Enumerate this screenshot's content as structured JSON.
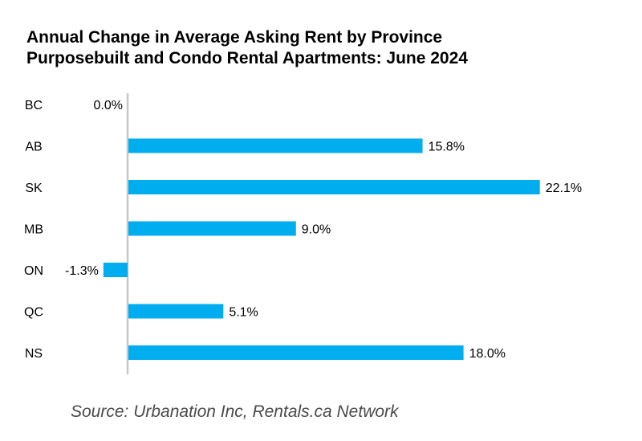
{
  "title_line1": "Annual Change in Average Asking Rent by Province",
  "title_line2": "Purposebuilt and Condo Rental Apartments: June 2024",
  "source": "Source: Urbanation Inc, Rentals.ca Network",
  "bar_color": "#00AEEF",
  "axis_color": "#c8c8c8",
  "chart_data": {
    "type": "bar",
    "orientation": "horizontal",
    "categories": [
      "BC",
      "AB",
      "SK",
      "MB",
      "ON",
      "QC",
      "NS"
    ],
    "values": [
      0.0,
      15.8,
      22.1,
      9.0,
      -1.3,
      5.1,
      18.0
    ],
    "value_labels": [
      "0.0%",
      "15.8%",
      "22.1%",
      "9.0%",
      "-1.3%",
      "5.1%",
      "18.0%"
    ],
    "unit": "%",
    "title": "Annual Change in Average Asking Rent by Province Purposebuilt and Condo Rental Apartments: June 2024",
    "xlabel": "",
    "ylabel": "",
    "grid": false,
    "legend": "none"
  }
}
